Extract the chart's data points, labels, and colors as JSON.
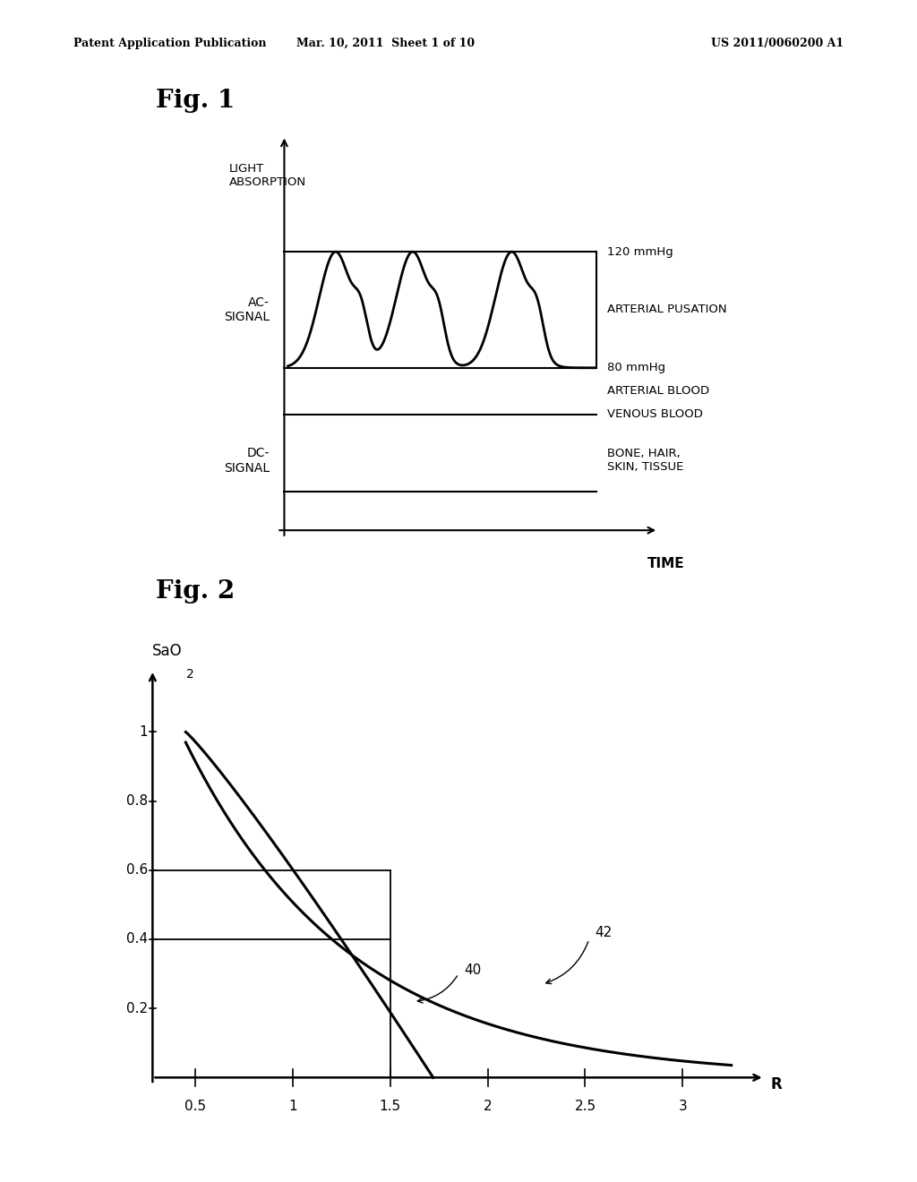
{
  "background_color": "#ffffff",
  "header_text_left": "Patent Application Publication",
  "header_text_mid": "Mar. 10, 2011  Sheet 1 of 10",
  "header_text_right": "US 2011/0060200 A1",
  "fig1_title": "Fig. 1",
  "fig2_title": "Fig. 2",
  "fig1_ylabel": "LIGHT\nABSORPTION",
  "fig1_xlabel": "TIME",
  "fig1_ac_label": "AC-\nSIGNAL",
  "fig1_dc_label": "DC-\nSIGNAL",
  "fig1_120mmhg": "120 mmHg",
  "fig1_arterial_pulsation": "ARTERIAL PUSATION",
  "fig1_80mmhg": "80 mmHg",
  "fig1_arterial_blood": "ARTERIAL BLOOD",
  "fig1_venous_blood": "VENOUS BLOOD",
  "fig1_bone": "BONE, HAIR,\nSKIN, TISSUE",
  "fig2_ylabel": "SaO",
  "fig2_ylabel_sub": "2",
  "fig2_xlabel": "R",
  "fig2_label_40": "40",
  "fig2_label_42": "42",
  "fig2_yticks": [
    0.2,
    0.4,
    0.6,
    0.8,
    1.0
  ],
  "fig2_xticks": [
    0.5,
    1.0,
    1.5,
    2.0,
    2.5,
    3.0
  ],
  "fig2_xtick_labels": [
    "0.5",
    "1",
    "1.5",
    "2",
    "2.5",
    "3"
  ]
}
